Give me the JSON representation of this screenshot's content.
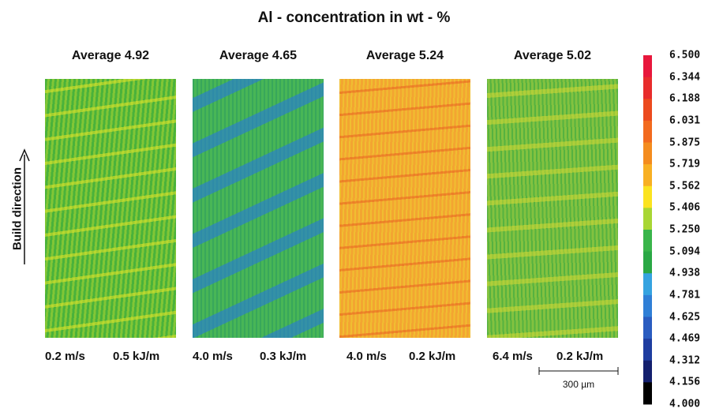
{
  "title": "Al - concentration in wt - %",
  "panels": [
    {
      "average": "Average 4.92",
      "speed": "0.2 m/s",
      "energy": "0.5 kJ/m"
    },
    {
      "average": "Average 4.65",
      "speed": "4.0 m/s",
      "energy": "0.3 kJ/m"
    },
    {
      "average": "Average 5.24",
      "speed": "4.0 m/s",
      "energy": "0.2 kJ/m"
    },
    {
      "average": "Average 5.02",
      "speed": "6.4 m/s",
      "energy": "0.2 kJ/m"
    }
  ],
  "build_direction": "Build direction",
  "scale_bar": "300 µm",
  "colorbar": {
    "labels": [
      "6.500",
      "6.344",
      "6.188",
      "6.031",
      "5.875",
      "5.719",
      "5.562",
      "5.406",
      "5.250",
      "5.094",
      "4.938",
      "4.781",
      "4.625",
      "4.469",
      "4.312",
      "4.156",
      "4.000"
    ]
  }
}
